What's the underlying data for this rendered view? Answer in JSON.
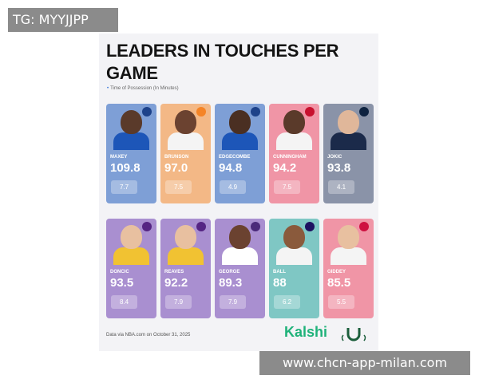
{
  "watermarks": {
    "top": "TG: MYYJJPP",
    "bottom": "www.chcn-app-milan.com"
  },
  "poster": {
    "title_line1": "LEADERS IN TOUCHES PER",
    "title_line2": "GAME",
    "subtitle": "Time of Possession (In Minutes)",
    "source": "Data via NBA.com on October 31, 2025",
    "brand": "Kalshi"
  },
  "players": [
    {
      "name": "MAXEY",
      "touches": "109.8",
      "minutes": "7.7",
      "team": "76",
      "color": "#7e9fd6",
      "logo_bg": "#1d428a",
      "jersey": "#1d56b8",
      "skin": "#5a3a2a"
    },
    {
      "name": "BRUNSON",
      "touches": "97.0",
      "minutes": "7.5",
      "team": "NY",
      "color": "#f3b886",
      "logo_bg": "#f58426",
      "jersey": "#f4f4f4",
      "skin": "#6b4230"
    },
    {
      "name": "EDGECOMBE",
      "touches": "94.8",
      "minutes": "4.9",
      "team": "76",
      "color": "#7e9fd6",
      "logo_bg": "#1d428a",
      "jersey": "#1d56b8",
      "skin": "#4a2f22"
    },
    {
      "name": "CUNNINGHAM",
      "touches": "94.2",
      "minutes": "7.5",
      "team": "DET",
      "color": "#f095a6",
      "logo_bg": "#c8102e",
      "jersey": "#f4f4f4",
      "skin": "#5a3a2a"
    },
    {
      "name": "JOKIC",
      "touches": "93.8",
      "minutes": "4.1",
      "team": "DEN",
      "color": "#8a93a8",
      "logo_bg": "#0e2240",
      "jersey": "#1b2a4a",
      "skin": "#e0b79a"
    },
    {
      "name": "DONCIC",
      "touches": "93.5",
      "minutes": "8.4",
      "team": "LAL",
      "color": "#a98fd0",
      "logo_bg": "#552583",
      "jersey": "#f1c232",
      "skin": "#e8c0a0"
    },
    {
      "name": "REAVES",
      "touches": "92.2",
      "minutes": "7.9",
      "team": "LAL",
      "color": "#a98fd0",
      "logo_bg": "#552583",
      "jersey": "#f1c232",
      "skin": "#e8c0a0"
    },
    {
      "name": "GEORGE",
      "touches": "89.3",
      "minutes": "7.9",
      "team": "UTA",
      "color": "#a98fd0",
      "logo_bg": "#4b2a7a",
      "jersey": "#ffffff",
      "skin": "#6b4230"
    },
    {
      "name": "BALL",
      "touches": "88",
      "minutes": "6.2",
      "team": "CHA",
      "color": "#7fc7c4",
      "logo_bg": "#1d1160",
      "jersey": "#f4f4f4",
      "skin": "#8a5a3c"
    },
    {
      "name": "GIDDEY",
      "touches": "85.5",
      "minutes": "5.5",
      "team": "CHI",
      "color": "#f095a6",
      "logo_bg": "#ce1141",
      "jersey": "#f4f4f4",
      "skin": "#e8c0a0"
    }
  ]
}
